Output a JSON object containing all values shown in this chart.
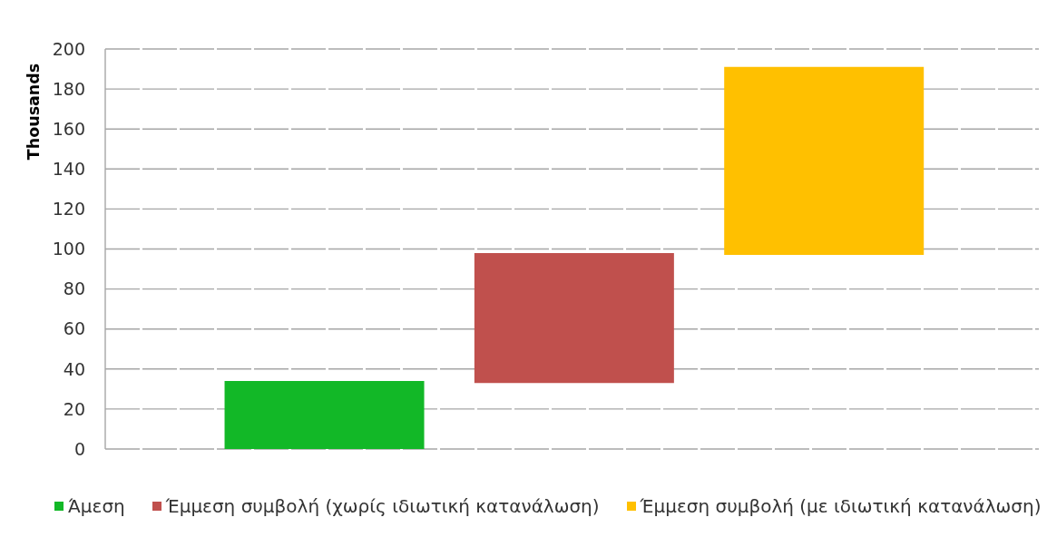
{
  "chart_data": {
    "type": "bar",
    "ylabel": "Thousands",
    "categories": [
      null,
      null,
      null
    ],
    "series": [
      {
        "name": "Άμεση",
        "color": "#12b827",
        "values": [
          34,
          null,
          null
        ],
        "base": [
          0,
          null,
          null
        ]
      },
      {
        "name": "Έμμεση συμβολή (χωρίς ιδιωτική κατανάλωση)",
        "color": "#c0504d",
        "values": [
          null,
          65,
          null
        ],
        "base": [
          null,
          33,
          null
        ]
      },
      {
        "name": "Έμμεση συμβολή (με ιδιωτική κατανάλωση)",
        "color": "#ffc000",
        "values": [
          null,
          null,
          94
        ],
        "base": [
          null,
          null,
          97
        ]
      }
    ],
    "ylim": [
      0,
      200
    ],
    "yticks": [
      0,
      20,
      40,
      60,
      80,
      100,
      120,
      140,
      160,
      180,
      200
    ],
    "grid": "y",
    "legend": "bottom"
  }
}
